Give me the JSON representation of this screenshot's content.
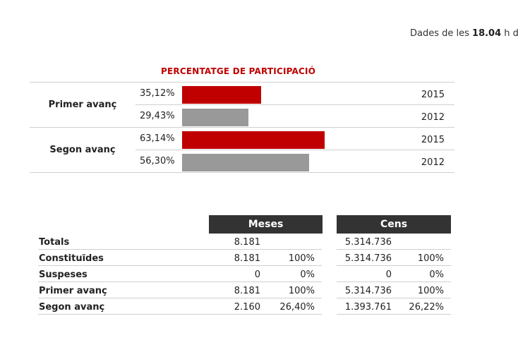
{
  "update": {
    "prefix": "Dades de les ",
    "time": "18.04",
    "suffix": " h d"
  },
  "participation": {
    "title": "PERCENTATGE DE PARTICIPACIÓ",
    "groups": [
      {
        "label": "Primer avanç",
        "rows": [
          {
            "pct": "35,12%",
            "value": 35.12,
            "year": "2015",
            "color": "#c00000"
          },
          {
            "pct": "29,43%",
            "value": 29.43,
            "year": "2012",
            "color": "#999999"
          }
        ]
      },
      {
        "label": "Segon avanç",
        "rows": [
          {
            "pct": "63,14%",
            "value": 63.14,
            "year": "2015",
            "color": "#c00000"
          },
          {
            "pct": "56,30%",
            "value": 56.3,
            "year": "2012",
            "color": "#999999"
          }
        ]
      }
    ]
  },
  "table": {
    "headers": {
      "meses": "Meses",
      "cens": "Cens"
    },
    "rows": [
      {
        "label": "Totals",
        "meses": "8.181",
        "meses_pct": "",
        "cens": "5.314.736",
        "cens_pct": ""
      },
      {
        "label": "Constituïdes",
        "meses": "8.181",
        "meses_pct": "100%",
        "cens": "5.314.736",
        "cens_pct": "100%"
      },
      {
        "label": "Suspeses",
        "meses": "0",
        "meses_pct": "0%",
        "cens": "0",
        "cens_pct": "0%"
      },
      {
        "label": "Primer avanç",
        "meses": "8.181",
        "meses_pct": "100%",
        "cens": "5.314.736",
        "cens_pct": "100%"
      },
      {
        "label": "Segon avanç",
        "meses": "2.160",
        "meses_pct": "26,40%",
        "cens": "1.393.761",
        "cens_pct": "26,22%"
      }
    ]
  }
}
